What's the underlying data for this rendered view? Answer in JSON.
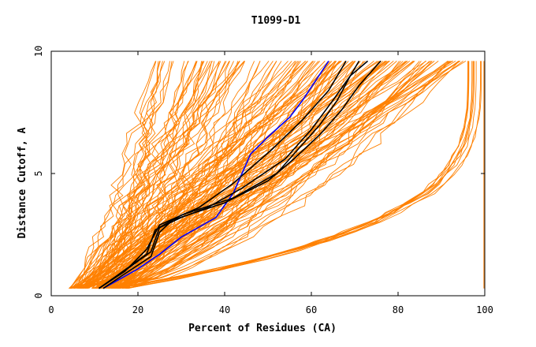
{
  "chart_data": {
    "type": "line",
    "title": "T1099-D1",
    "xlabel": "Percent of Residues (CA)",
    "ylabel": "Distance Cutoff, A",
    "xlim": [
      0,
      100
    ],
    "ylim": [
      0,
      10
    ],
    "x_ticks": [
      "0",
      "20",
      "40",
      "60",
      "80",
      "100"
    ],
    "y_ticks": [
      "0",
      "5",
      "10"
    ],
    "grid": false,
    "legend": "none",
    "colors": {
      "models": "#ff8000",
      "highlight_black": "#000000",
      "highlight_blue": "#0000ff"
    },
    "highlight_series": [
      {
        "color": "#0000ff",
        "points": [
          [
            12,
            0.3
          ],
          [
            15,
            0.6
          ],
          [
            20,
            1.1
          ],
          [
            25,
            1.7
          ],
          [
            30,
            2.4
          ],
          [
            38,
            3.2
          ],
          [
            42,
            4.2
          ],
          [
            44,
            5.0
          ],
          [
            46,
            5.8
          ],
          [
            50,
            6.5
          ],
          [
            55,
            7.3
          ],
          [
            58,
            8.0
          ],
          [
            61,
            8.8
          ],
          [
            64,
            9.6
          ]
        ]
      },
      {
        "color": "#000000",
        "points": [
          [
            11,
            0.3
          ],
          [
            16,
            0.9
          ],
          [
            23,
            1.8
          ],
          [
            25,
            2.8
          ],
          [
            30,
            3.3
          ],
          [
            42,
            4.0
          ],
          [
            52,
            5.0
          ],
          [
            57,
            6.0
          ],
          [
            62,
            7.0
          ],
          [
            66,
            8.0
          ],
          [
            69,
            9.0
          ],
          [
            73,
            9.6
          ]
        ]
      },
      {
        "color": "#000000",
        "points": [
          [
            12,
            0.3
          ],
          [
            17,
            0.9
          ],
          [
            23,
            1.6
          ],
          [
            25,
            2.6
          ],
          [
            28,
            3.1
          ],
          [
            40,
            3.8
          ],
          [
            50,
            4.7
          ],
          [
            56,
            5.6
          ],
          [
            62,
            6.6
          ],
          [
            67,
            7.6
          ],
          [
            71,
            8.6
          ],
          [
            76,
            9.6
          ]
        ]
      },
      {
        "color": "#000000",
        "points": [
          [
            11,
            0.3
          ],
          [
            15,
            0.8
          ],
          [
            22,
            1.7
          ],
          [
            24,
            2.7
          ],
          [
            30,
            3.2
          ],
          [
            36,
            3.6
          ],
          [
            44,
            4.4
          ],
          [
            54,
            5.6
          ],
          [
            60,
            6.8
          ],
          [
            65,
            8.0
          ],
          [
            69,
            9.0
          ],
          [
            71,
            9.6
          ]
        ]
      },
      {
        "color": "#000000",
        "points": [
          [
            11,
            0.3
          ],
          [
            17,
            1.0
          ],
          [
            22,
            1.9
          ],
          [
            25,
            2.9
          ],
          [
            34,
            3.6
          ],
          [
            42,
            4.6
          ],
          [
            51,
            6.0
          ],
          [
            58,
            7.2
          ],
          [
            64,
            8.4
          ],
          [
            68,
            9.6
          ]
        ]
      }
    ]
  }
}
